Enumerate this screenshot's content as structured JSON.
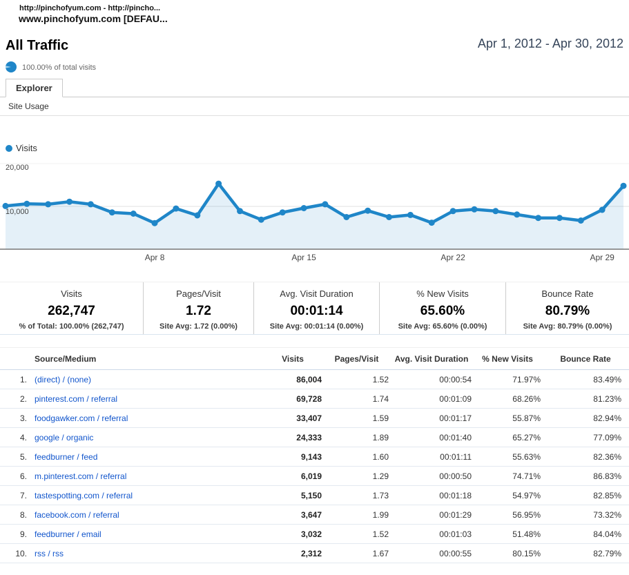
{
  "window": {
    "breadcrumb_line1": "http://pinchofyum.com - http://pincho...",
    "breadcrumb_line2": "www.pinchofyum.com [DEFAU..."
  },
  "header": {
    "title": "All Traffic",
    "date_range": "Apr 1, 2012 - Apr 30, 2012",
    "percent_of_visits": "100.00% of total visits"
  },
  "tabs": {
    "explorer_label": "Explorer",
    "subtab_label": "Site Usage"
  },
  "colors": {
    "line_blue": "#1f86c8",
    "area_fill": "rgba(31,134,200,0.12)",
    "link_blue": "#1155cc",
    "gridline": "#e2e2e2",
    "axis": "#777777"
  },
  "chart_data": {
    "type": "line",
    "title": "Visits per day",
    "legend_position": "top-left",
    "grid": true,
    "ylim": [
      0,
      20000
    ],
    "yticks": [
      10000,
      20000
    ],
    "ytick_labels": [
      "10,000",
      "20,000"
    ],
    "x": [
      "Apr 1",
      "Apr 2",
      "Apr 3",
      "Apr 4",
      "Apr 5",
      "Apr 6",
      "Apr 7",
      "Apr 8",
      "Apr 9",
      "Apr 10",
      "Apr 11",
      "Apr 12",
      "Apr 13",
      "Apr 14",
      "Apr 15",
      "Apr 16",
      "Apr 17",
      "Apr 18",
      "Apr 19",
      "Apr 20",
      "Apr 21",
      "Apr 22",
      "Apr 23",
      "Apr 24",
      "Apr 25",
      "Apr 26",
      "Apr 27",
      "Apr 28",
      "Apr 29",
      "Apr 30"
    ],
    "xtick_labels_shown": [
      "Apr 8",
      "Apr 15",
      "Apr 22",
      "Apr 29"
    ],
    "series": [
      {
        "name": "Visits",
        "values": [
          10100,
          10600,
          10500,
          11100,
          10500,
          8600,
          8300,
          6100,
          9500,
          7900,
          15300,
          8900,
          6900,
          8600,
          9600,
          10500,
          7500,
          9000,
          7500,
          8000,
          6200,
          8900,
          9300,
          8900,
          8100,
          7300,
          7300,
          6700,
          9200,
          14800
        ]
      }
    ]
  },
  "stats": [
    {
      "label": "Visits",
      "value": "262,747",
      "sub": "% of Total: 100.00% (262,747)"
    },
    {
      "label": "Pages/Visit",
      "value": "1.72",
      "sub": "Site Avg: 1.72 (0.00%)"
    },
    {
      "label": "Avg. Visit Duration",
      "value": "00:01:14",
      "sub": "Site Avg: 00:01:14 (0.00%)"
    },
    {
      "label": "% New Visits",
      "value": "65.60%",
      "sub": "Site Avg: 65.60% (0.00%)"
    },
    {
      "label": "Bounce Rate",
      "value": "80.79%",
      "sub": "Site Avg: 80.79% (0.00%)"
    }
  ],
  "table": {
    "columns": [
      "Source/Medium",
      "Visits",
      "Pages/Visit",
      "Avg. Visit Duration",
      "% New Visits",
      "Bounce Rate"
    ],
    "rows": [
      {
        "rank": "1.",
        "source": "(direct) / (none)",
        "visits": "86,004",
        "pages_visit": "1.52",
        "avg_duration": "00:00:54",
        "new_visits": "71.97%",
        "bounce_rate": "83.49%"
      },
      {
        "rank": "2.",
        "source": "pinterest.com / referral",
        "visits": "69,728",
        "pages_visit": "1.74",
        "avg_duration": "00:01:09",
        "new_visits": "68.26%",
        "bounce_rate": "81.23%"
      },
      {
        "rank": "3.",
        "source": "foodgawker.com / referral",
        "visits": "33,407",
        "pages_visit": "1.59",
        "avg_duration": "00:01:17",
        "new_visits": "55.87%",
        "bounce_rate": "82.94%"
      },
      {
        "rank": "4.",
        "source": "google / organic",
        "visits": "24,333",
        "pages_visit": "1.89",
        "avg_duration": "00:01:40",
        "new_visits": "65.27%",
        "bounce_rate": "77.09%"
      },
      {
        "rank": "5.",
        "source": "feedburner / feed",
        "visits": "9,143",
        "pages_visit": "1.60",
        "avg_duration": "00:01:11",
        "new_visits": "55.63%",
        "bounce_rate": "82.36%"
      },
      {
        "rank": "6.",
        "source": "m.pinterest.com / referral",
        "visits": "6,019",
        "pages_visit": "1.29",
        "avg_duration": "00:00:50",
        "new_visits": "74.71%",
        "bounce_rate": "86.83%"
      },
      {
        "rank": "7.",
        "source": "tastespotting.com / referral",
        "visits": "5,150",
        "pages_visit": "1.73",
        "avg_duration": "00:01:18",
        "new_visits": "54.97%",
        "bounce_rate": "82.85%"
      },
      {
        "rank": "8.",
        "source": "facebook.com / referral",
        "visits": "3,647",
        "pages_visit": "1.99",
        "avg_duration": "00:01:29",
        "new_visits": "56.95%",
        "bounce_rate": "73.32%"
      },
      {
        "rank": "9.",
        "source": "feedburner / email",
        "visits": "3,032",
        "pages_visit": "1.52",
        "avg_duration": "00:01:03",
        "new_visits": "51.48%",
        "bounce_rate": "84.04%"
      },
      {
        "rank": "10.",
        "source": "rss / rss",
        "visits": "2,312",
        "pages_visit": "1.67",
        "avg_duration": "00:00:55",
        "new_visits": "80.15%",
        "bounce_rate": "82.79%"
      }
    ]
  }
}
